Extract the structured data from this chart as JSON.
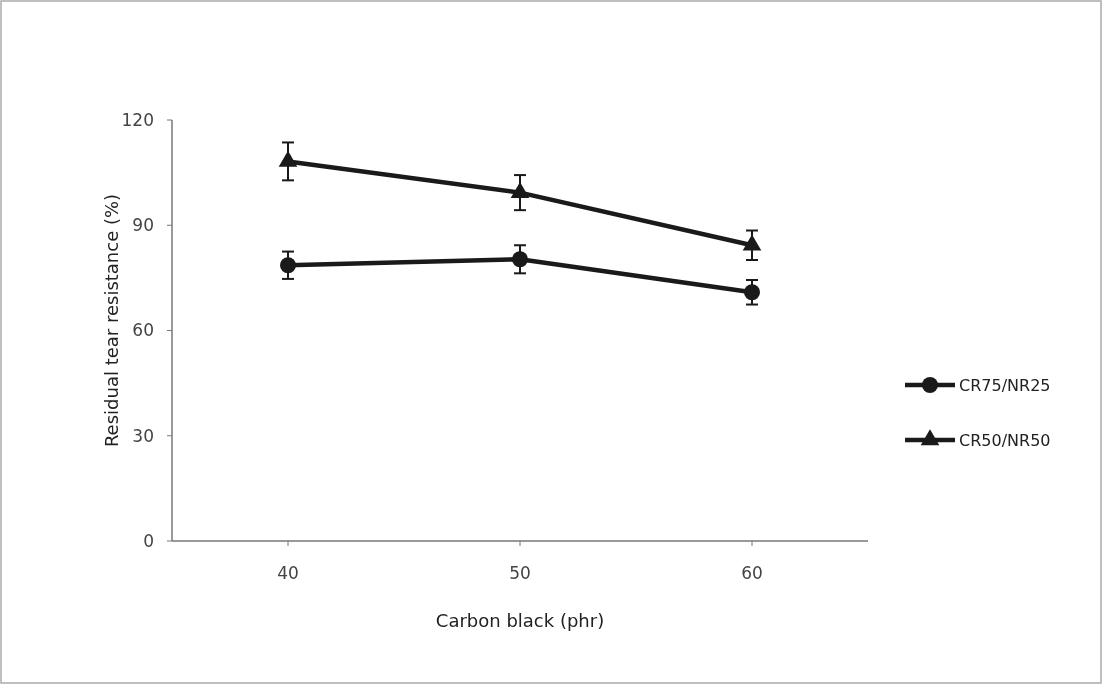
{
  "chart_data": {
    "type": "line",
    "xlabel": "Carbon black (phr)",
    "ylabel": "Residual tear resistance (%)",
    "categories": [
      "40",
      "50",
      "60"
    ],
    "series": [
      {
        "name": "CR75/NR25",
        "color": "#1a1a1a",
        "marker": "circle",
        "values": [
          78.6,
          80.3,
          70.9
        ],
        "errors": [
          3.9,
          4,
          3.5
        ]
      },
      {
        "name": "CR50/NR50",
        "color": "#1a1a1a",
        "marker": "triangle",
        "values": [
          108.2,
          99.3,
          84.3
        ],
        "errors": [
          5.4,
          5,
          4.2
        ]
      }
    ],
    "ylim": [
      0,
      120
    ],
    "yticks": [
      0,
      30,
      60,
      90,
      120
    ],
    "grid": false,
    "legend": "right",
    "line_style": "solid"
  }
}
